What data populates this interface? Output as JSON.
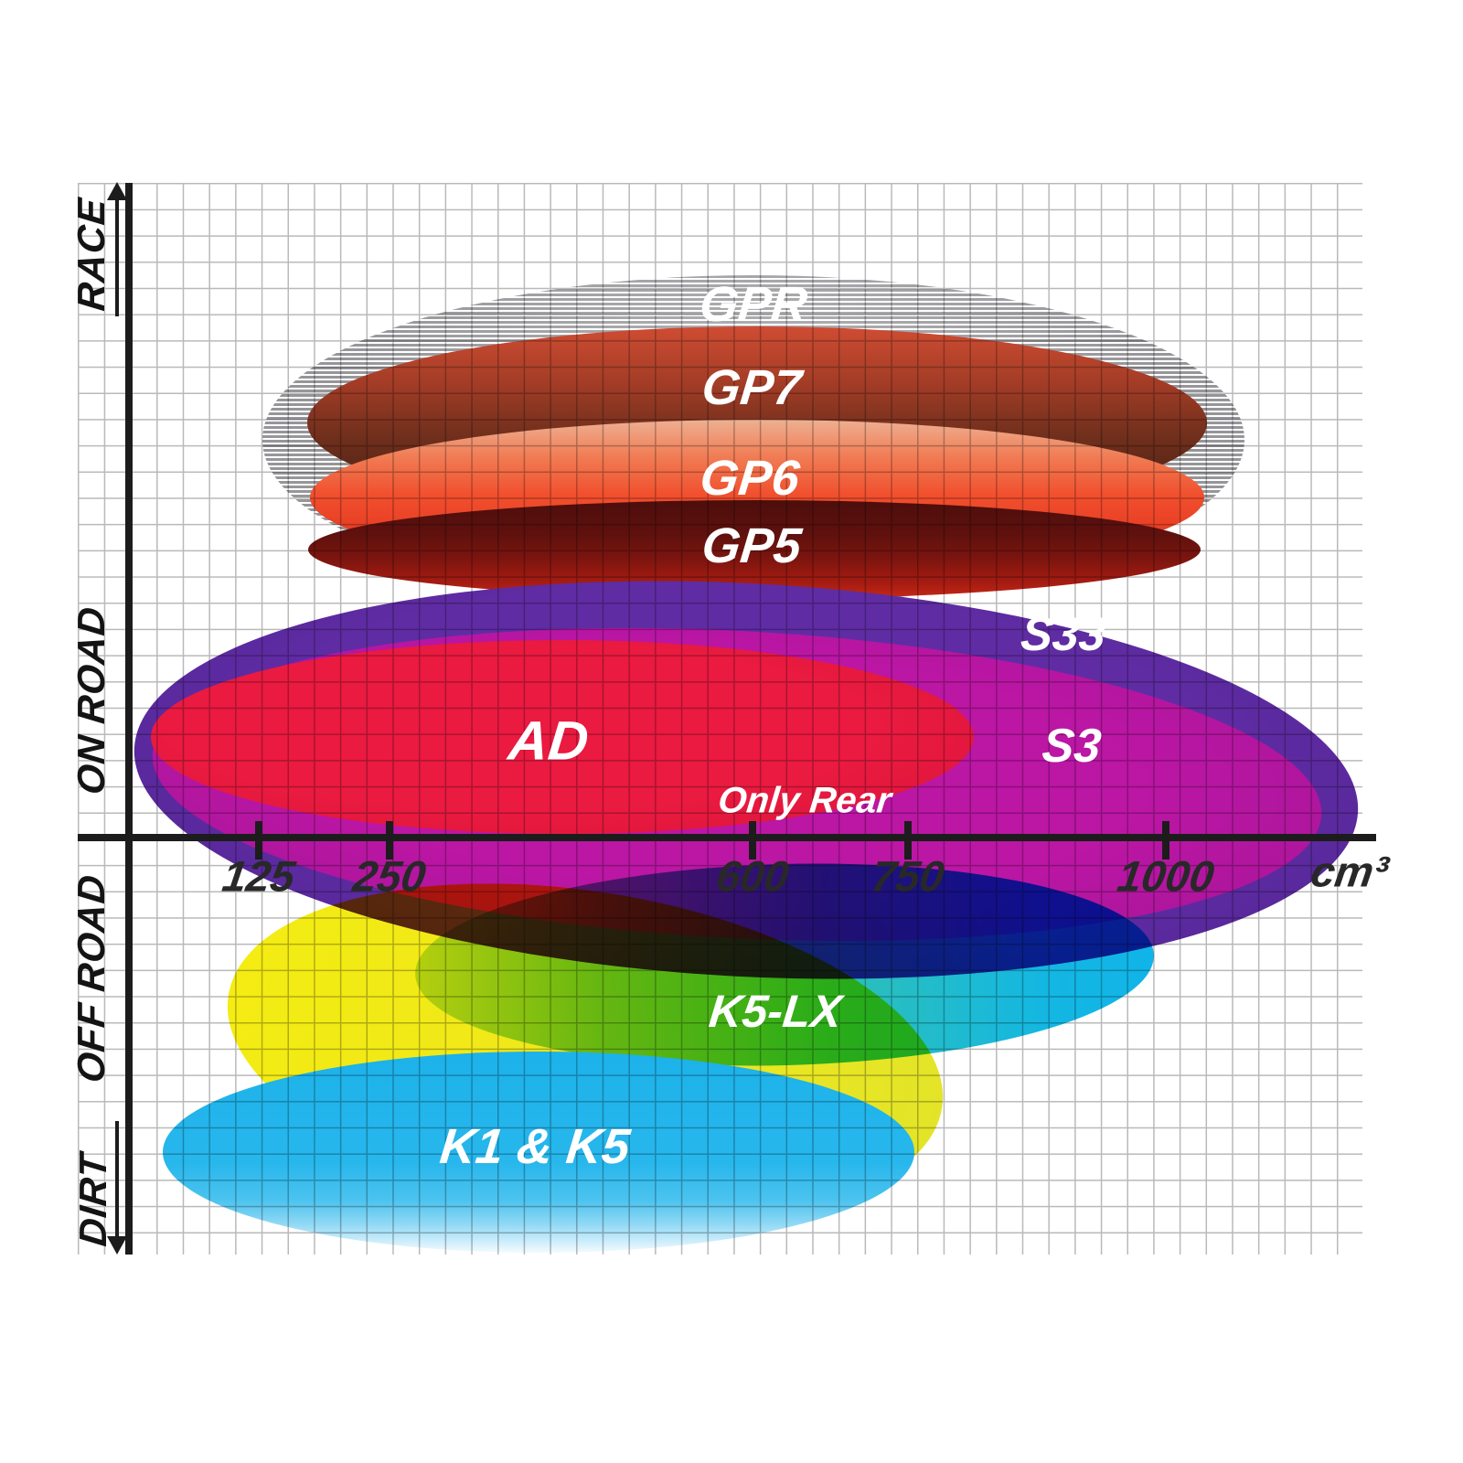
{
  "chart_data": {
    "type": "scatter",
    "title": "",
    "xlabel": "cm³",
    "ylabel": "usage (DIRT → OFF ROAD → ON ROAD → RACE)",
    "x_ticks": [
      125,
      250,
      600,
      750,
      1000
    ],
    "x_range_cc": [
      0,
      1200
    ],
    "y_categories_top_to_bottom": [
      "RACE",
      "ON ROAD",
      "OFF ROAD",
      "DIRT"
    ],
    "grid": "on",
    "legend_position": "none (labels inside ellipses)",
    "series": [
      {
        "name": "GPR",
        "zone": "RACE",
        "cc_min": 125,
        "cc_max": 1075,
        "color": "#96969a",
        "style": "gray horizontal stripes"
      },
      {
        "name": "GP7",
        "zone": "RACE",
        "cc_min": 170,
        "cc_max": 1040,
        "color": "#73301d",
        "style": "dark brick-red gradient"
      },
      {
        "name": "GP6",
        "zone": "RACE",
        "cc_min": 175,
        "cc_max": 1035,
        "color": "#f1502e",
        "style": "orange-red gradient, salmon top"
      },
      {
        "name": "GP5",
        "zone": "RACE / ON ROAD",
        "cc_min": 172,
        "cc_max": 1032,
        "color": "#5f110e",
        "style": "dark maroon gradient"
      },
      {
        "name": "S33",
        "zone": "ON ROAD",
        "cc_min": 5,
        "cc_max": 1185,
        "color": "#5c2aa0",
        "style": "purple"
      },
      {
        "name": "S3",
        "zone": "ON ROAD",
        "cc_min": 25,
        "cc_max": 1150,
        "color": "#b116a0",
        "style": "magenta"
      },
      {
        "name": "AD",
        "zone": "ON ROAD",
        "cc_min": 25,
        "cc_max": 815,
        "color": "#e51a3e",
        "style": "crimson"
      },
      {
        "name": "K5-LX",
        "zone": "OFF ROAD",
        "cc_min": 280,
        "cc_max": 990,
        "color": "#2fc0b4",
        "style": "green-to-cyan gradient"
      },
      {
        "name": "K1 & K5",
        "zone": "DIRT",
        "cc_min": 30,
        "cc_max": 760,
        "color": "#27b7ec",
        "style": "light blue, fades at bottom"
      },
      {
        "name": "",
        "zone": "OFF ROAD / DIRT",
        "cc_min": 95,
        "cc_max": 785,
        "color": "#f2ea10",
        "style": "unlabeled yellow backing ellipse"
      }
    ],
    "annotations": [
      {
        "text": "Only Rear",
        "attached_to": "AD / S3 boundary"
      }
    ]
  },
  "yaxis": {
    "labels": {
      "race": "RACE",
      "on_road": "ON ROAD",
      "off_road": "OFF ROAD",
      "dirt": "DIRT"
    },
    "arrows": [
      "up at RACE end",
      "down at DIRT end"
    ]
  },
  "xaxis": {
    "ticks": [
      {
        "label": "125"
      },
      {
        "label": "250"
      },
      {
        "label": "600"
      },
      {
        "label": "750"
      },
      {
        "label": "1000"
      }
    ],
    "unit": "cm³"
  },
  "colors": {
    "axis": "#1c1c1c",
    "grid_line": "#b9b9b9",
    "tick_label": "#282828",
    "ellipse_label_text": "#ffffff"
  }
}
